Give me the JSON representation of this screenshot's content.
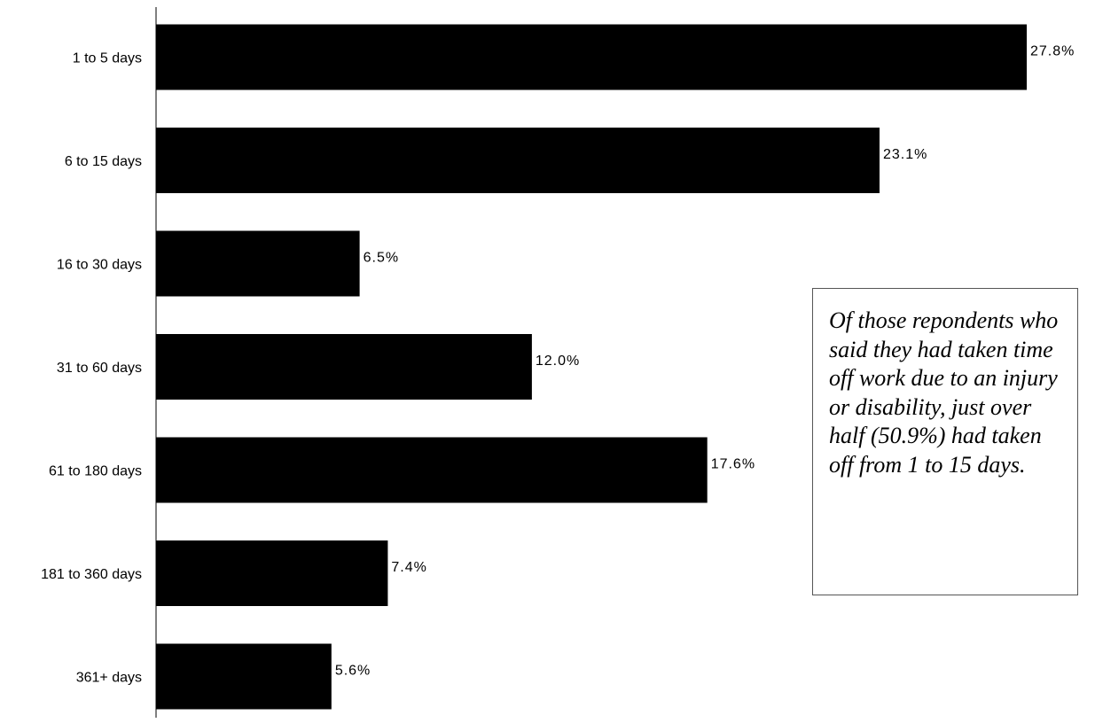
{
  "chart_data": {
    "type": "bar",
    "orientation": "horizontal",
    "categories": [
      "1 to 5 days",
      "6 to 15 days",
      "16 to 30 days",
      "31 to 60 days",
      "61 to 180 days",
      "181 to 360 days",
      "361+ days"
    ],
    "values": [
      27.8,
      23.1,
      6.5,
      12.0,
      17.6,
      7.4,
      5.6
    ],
    "value_labels": [
      "27.8%",
      "23.1%",
      "6.5%",
      "12.0%",
      "17.6%",
      "7.4%",
      "5.6%"
    ],
    "bar_color": "#000000",
    "xlim": [
      0,
      27.8
    ],
    "grid": false,
    "legend": "none"
  },
  "annotation": {
    "text": "Of those repondents who said they had taken time off work due to an injury or disability, just over half (50.9%) had taken off from 1 to 15 days."
  }
}
